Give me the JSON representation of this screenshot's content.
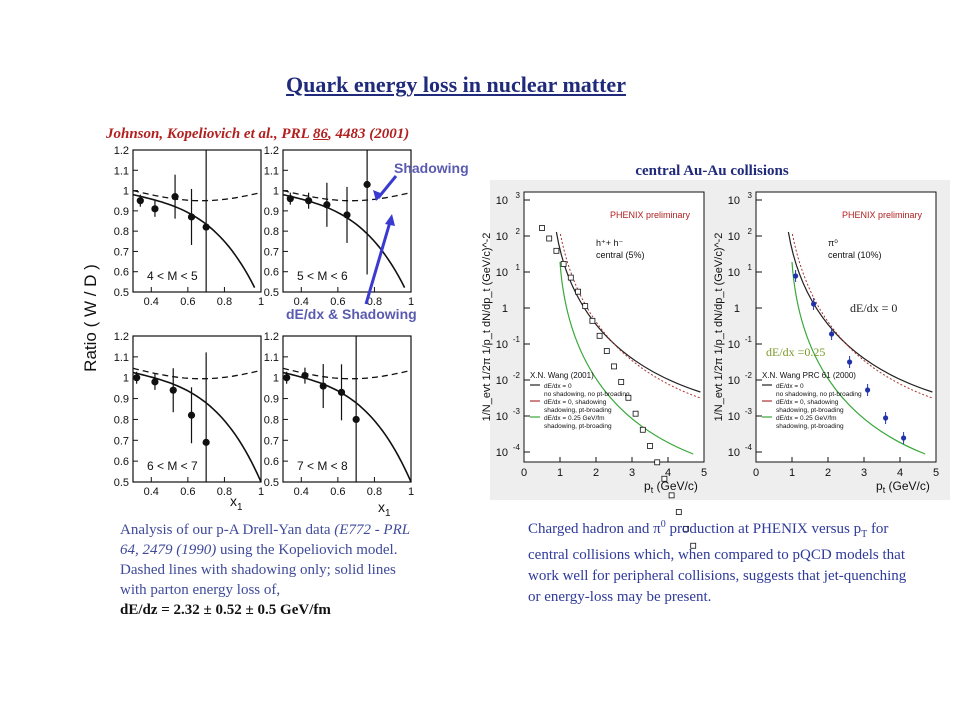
{
  "title": "Quark energy loss in nuclear matter",
  "citation": {
    "prefix": "Johnson, Kopeliovich et al., PRL ",
    "volume": "86",
    "suffix": ", 4483 (2001)"
  },
  "labels": {
    "shadowing": "Shadowing",
    "dedx_shadowing": "dE/dx & Shadowing"
  },
  "left_caption": {
    "line1": "Analysis of our p-A Drell-Yan data",
    "italic": "(E772 - PRL 64, 2479 (1990)",
    "after_italic": " using the Kopeliovich model. Dashed lines with shadowing only; solid lines with parton energy loss of,",
    "result": "dE/dz = 2.32 ± 0.52 ± 0.5 GeV/fm"
  },
  "right_caption": {
    "part1": "Charged hadron and ",
    "pi": "π",
    "zero": "0",
    "part2": " production at PHENIX versus p",
    "sub": "T",
    "part3": " for central collisions which, when compared to pQCD models that work well for peripheral collisions, suggests that jet-quenching or energy-loss may be present."
  },
  "left_figure": {
    "ylabel": "Ratio ( W / D )",
    "xlabel": "x",
    "xlabel_sub": "1",
    "yticks": [
      "1.2",
      "1.1",
      "1",
      "0.9",
      "0.8",
      "0.7",
      "0.6",
      "0.5"
    ],
    "xticks": [
      "0.4",
      "0.6",
      "0.8",
      "1"
    ],
    "panels": [
      {
        "mass_label": "4 < M < 5",
        "points": [
          [
            0.34,
            0.95
          ],
          [
            0.42,
            0.91
          ],
          [
            0.53,
            0.97
          ],
          [
            0.62,
            0.87
          ],
          [
            0.7,
            0.82
          ]
        ]
      },
      {
        "mass_label": "5 < M < 6",
        "points": [
          [
            0.34,
            0.96
          ],
          [
            0.44,
            0.95
          ],
          [
            0.54,
            0.93
          ],
          [
            0.65,
            0.88
          ],
          [
            0.76,
            1.03
          ]
        ]
      },
      {
        "mass_label": "6 < M < 7",
        "points": [
          [
            0.32,
            1.0
          ],
          [
            0.42,
            0.98
          ],
          [
            0.52,
            0.94
          ],
          [
            0.62,
            0.82
          ],
          [
            0.7,
            0.69
          ]
        ]
      },
      {
        "mass_label": "7 < M < 8",
        "points": [
          [
            0.32,
            1.0
          ],
          [
            0.42,
            1.01
          ],
          [
            0.52,
            0.96
          ],
          [
            0.62,
            0.93
          ],
          [
            0.7,
            0.8
          ]
        ]
      }
    ]
  },
  "right_figure": {
    "title": "central Au-Au collisions",
    "phenix": "PHENIX preliminary",
    "xlabel": "p",
    "xlabel_sub": "t",
    "xlabel_unit": " (GeV/c)",
    "ylabel": "1/N_evt 1/2π 1/p_t dN/dp_t (GeV/c)^-2",
    "xticks": [
      "0",
      "1",
      "2",
      "3",
      "4",
      "5"
    ],
    "ytick_exps": [
      "3",
      "2",
      "1",
      "",
      "-1",
      "-2",
      "-3",
      "-4"
    ],
    "left_panel": {
      "particle": "h⁺+ h⁻",
      "centrality": "central (5%)",
      "model": "X.N. Wang (2001)",
      "legend": [
        "dE/dx = 0",
        "no shadowing, no pt-broading",
        "dE/dx = 0, shadowing",
        "shadowing, pt-broading",
        "dE/dx = 0.25 GeV/fm",
        "shadowing, pt-broading"
      ]
    },
    "right_panel": {
      "particle": "π⁰",
      "centrality": "central (10%)",
      "model": "X.N. Wang PRC 61 (2000)",
      "legend": [
        "dE/dx = 0",
        "no shadowing, no pt-broading",
        "dE/dx = 0, shadowing",
        "shadowing, pt-broading",
        "dE/dx = 0.25 GeV/fm",
        "shadowing, pt-broading"
      ]
    },
    "annotation_dedx0": "dE/dx = 0",
    "annotation_dedx025": "dE/dx =0.25",
    "colors": {
      "model_black": "#222222",
      "model_dotted": "#aa3333",
      "model_green": "#3aa83a",
      "data": "#2233aa",
      "annot_green": "#7a9a2a"
    }
  }
}
